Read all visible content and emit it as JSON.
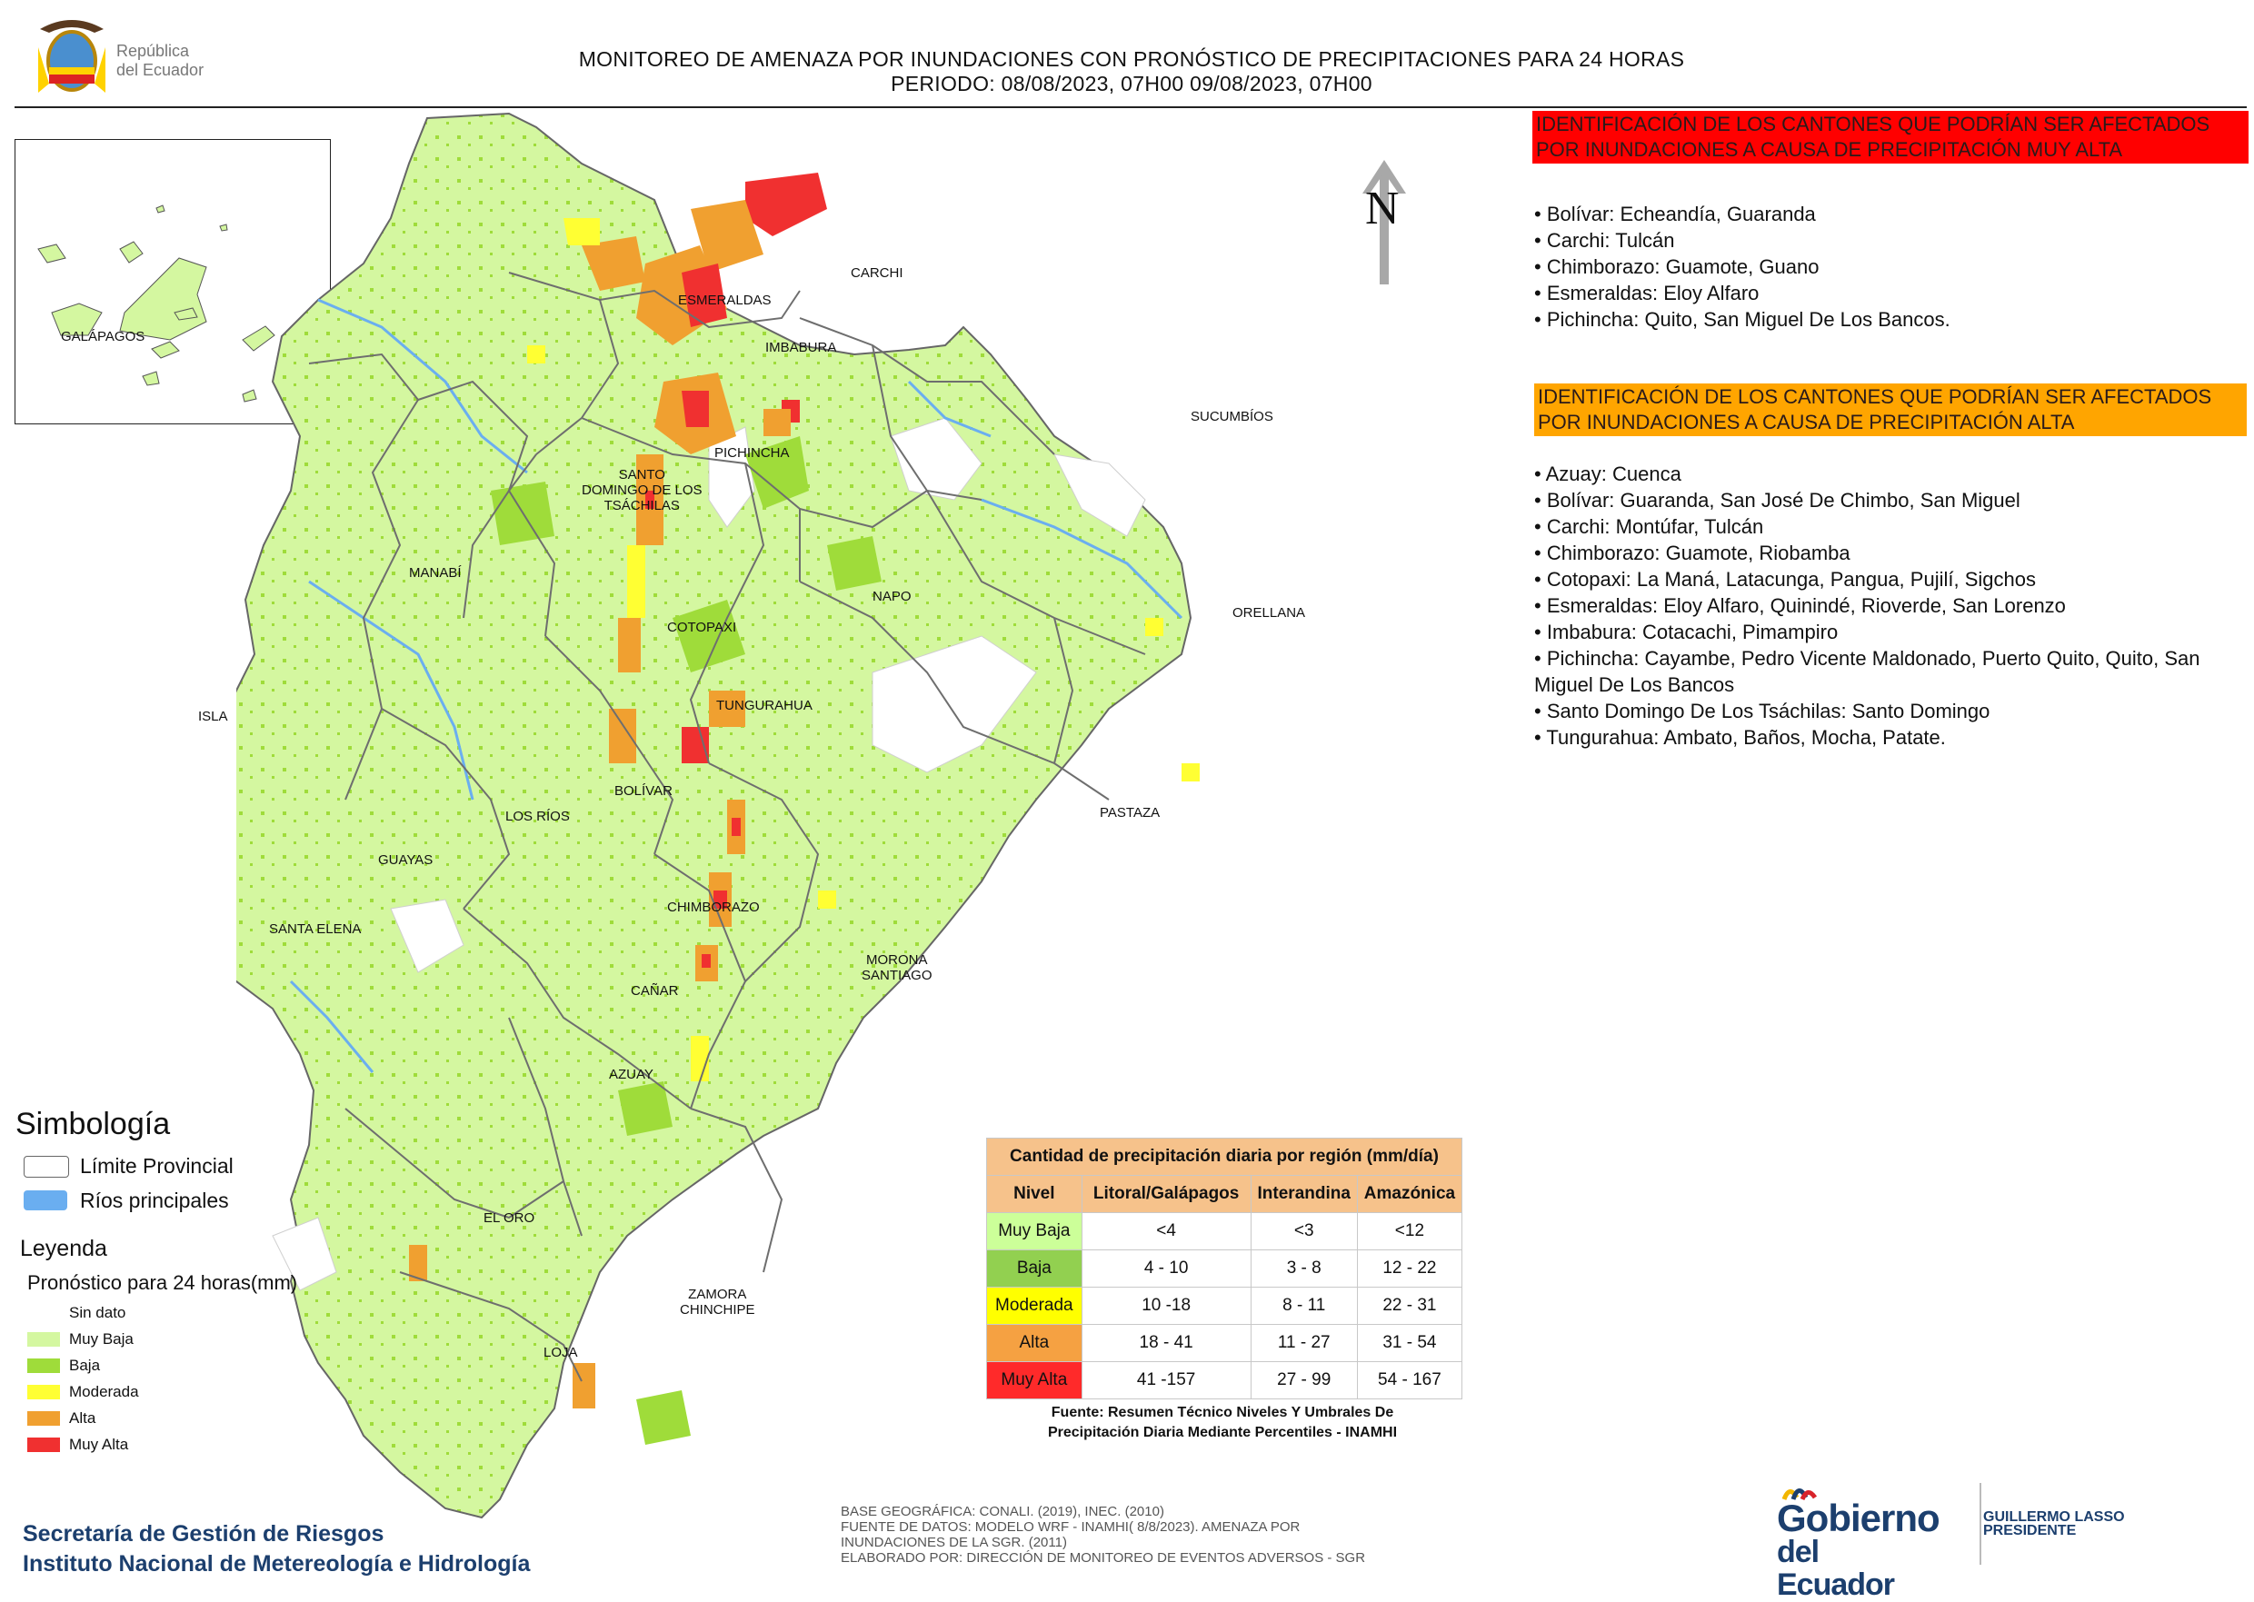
{
  "header": {
    "title_line1": "MONITOREO DE AMENAZA POR INUNDACIONES  CON PRONÓSTICO DE  PRECIPITACIONES PARA 24 HORAS",
    "title_line2": "PERIODO: 08/08/2023, 07H00 09/08/2023, 07H00",
    "logo_text_line1": "República",
    "logo_text_line2": "del Ecuador"
  },
  "north_label": "N",
  "inset": {
    "label": "GALÁPAGOS"
  },
  "provinces": [
    "ESMERALDAS",
    "CARCHI",
    "IMBABURA",
    "SUCUMBÍOS",
    "PICHINCHA",
    "SANTO\nDOMINGO DE LOS\nTSÁCHILAS",
    "MANABÍ",
    "NAPO",
    "ORELLANA",
    "COTOPAXI",
    "ISLA",
    "TUNGURAHUA",
    "BOLÍVAR",
    "LOS RÍOS",
    "PASTAZA",
    "GUAYAS",
    "CHIMBORAZO",
    "SANTA ELENA",
    "MORONA\nSANTIAGO",
    "CAÑAR",
    "AZUAY",
    "EL ORO",
    "ZAMORA\nCHINCHIPE",
    "LOJA"
  ],
  "alert_red": {
    "title": "IDENTIFICACIÓN DE LOS CANTONES QUE PODRÍAN SER AFECTADOS POR INUNDACIONES  A CAUSA DE PRECIPITACIÓN MUY ALTA",
    "items": [
      "Bolívar: Echeandía, Guaranda",
      "Carchi: Tulcán",
      "Chimborazo: Guamote, Guano",
      "Esmeraldas: Eloy Alfaro",
      "Pichincha: Quito, San Miguel De Los Bancos."
    ],
    "color": "#ff0000"
  },
  "alert_orange": {
    "title": "IDENTIFICACIÓN DE LOS CANTONES QUE  PODRÍAN SER AFECTADOS POR INUNDACIONES  A CAUSA DE PRECIPITACIÓN ALTA",
    "items": [
      "Azuay: Cuenca",
      "Bolívar: Guaranda, San José De Chimbo, San Miguel",
      "Carchi: Montúfar, Tulcán",
      "Chimborazo: Guamote, Riobamba",
      "Cotopaxi: La Maná, Latacunga, Pangua, Pujilí, Sigchos",
      "Esmeraldas: Eloy Alfaro, Quinindé, Rioverde, San Lorenzo",
      "Imbabura: Cotacachi, Pimampiro",
      "Pichincha: Cayambe, Pedro Vicente Maldonado, Puerto Quito, Quito, San Miguel De Los Bancos",
      "Santo Domingo De Los Tsáchilas: Santo Domingo",
      "Tungurahua: Ambato, Baños, Mocha, Patate."
    ],
    "color": "#ffa500"
  },
  "symbology": {
    "title": "Simbología",
    "limite": "Límite Provincial",
    "rios": "Ríos principales",
    "rios_color": "#6aaef0"
  },
  "legend": {
    "title": "Leyenda",
    "subtitle": "Pronóstico para 24 horas(mm)",
    "items": [
      {
        "label": "Sin dato",
        "color": "#ffffff"
      },
      {
        "label": "Muy Baja",
        "color": "#d4f7a0"
      },
      {
        "label": "Baja",
        "color": "#9fdc3a"
      },
      {
        "label": "Moderada",
        "color": "#ffff33"
      },
      {
        "label": "Alta",
        "color": "#f0a030"
      },
      {
        "label": "Muy Alta",
        "color": "#f03030"
      }
    ]
  },
  "precip_table": {
    "title": "Cantidad de precipitación diaria por región (mm/día)",
    "headers": [
      "Nivel",
      "Litoral/Galápagos",
      "Interandina",
      "Amazónica"
    ],
    "rows": [
      {
        "nivel": "Muy Baja",
        "color": "#ccff99",
        "litoral": "<4",
        "interandina": "<3",
        "amazonica": "<12"
      },
      {
        "nivel": "Baja",
        "color": "#92d050",
        "litoral": "4 - 10",
        "interandina": "3 - 8",
        "amazonica": "12 - 22"
      },
      {
        "nivel": "Moderada",
        "color": "#ffff00",
        "litoral": "10 -18",
        "interandina": "8 - 11",
        "amazonica": "22 - 31"
      },
      {
        "nivel": "Alta",
        "color": "#f5a142",
        "litoral": "18 - 41",
        "interandina": "11 - 27",
        "amazonica": "31 - 54"
      },
      {
        "nivel": "Muy Alta",
        "color": "#ff2a2a",
        "litoral": "41 -157",
        "interandina": "27 - 99",
        "amazonica": "54 - 167"
      }
    ],
    "source_line1": "Fuente: Resumen Técnico Niveles Y Umbrales De",
    "source_line2": "Precipitación Diaria Mediante Percentiles - INAMHI"
  },
  "footer": {
    "org_line1": "Secretaría de Gestión de Riesgos",
    "org_line2": "Instituto Nacional de Metereología e Hidrología",
    "base_line1": "BASE GEOGRÁFICA: CONALI. (2019), INEC. (2010)",
    "base_line2": "FUENTE DE DATOS: MODELO WRF - INAMHI( 8/8/2023).  AMENAZA POR",
    "base_line3": "INUNDACIONES DE LA SGR. (2011)",
    "base_line4": "ELABORADO POR: DIRECCIÓN DE MONITOREO DE EVENTOS ADVERSOS - SGR",
    "gob_line1": "Gobierno",
    "gob_line2": "del Ecuador",
    "pres_line1": "GUILLERMO LASSO",
    "pres_line2": "PRESIDENTE"
  }
}
